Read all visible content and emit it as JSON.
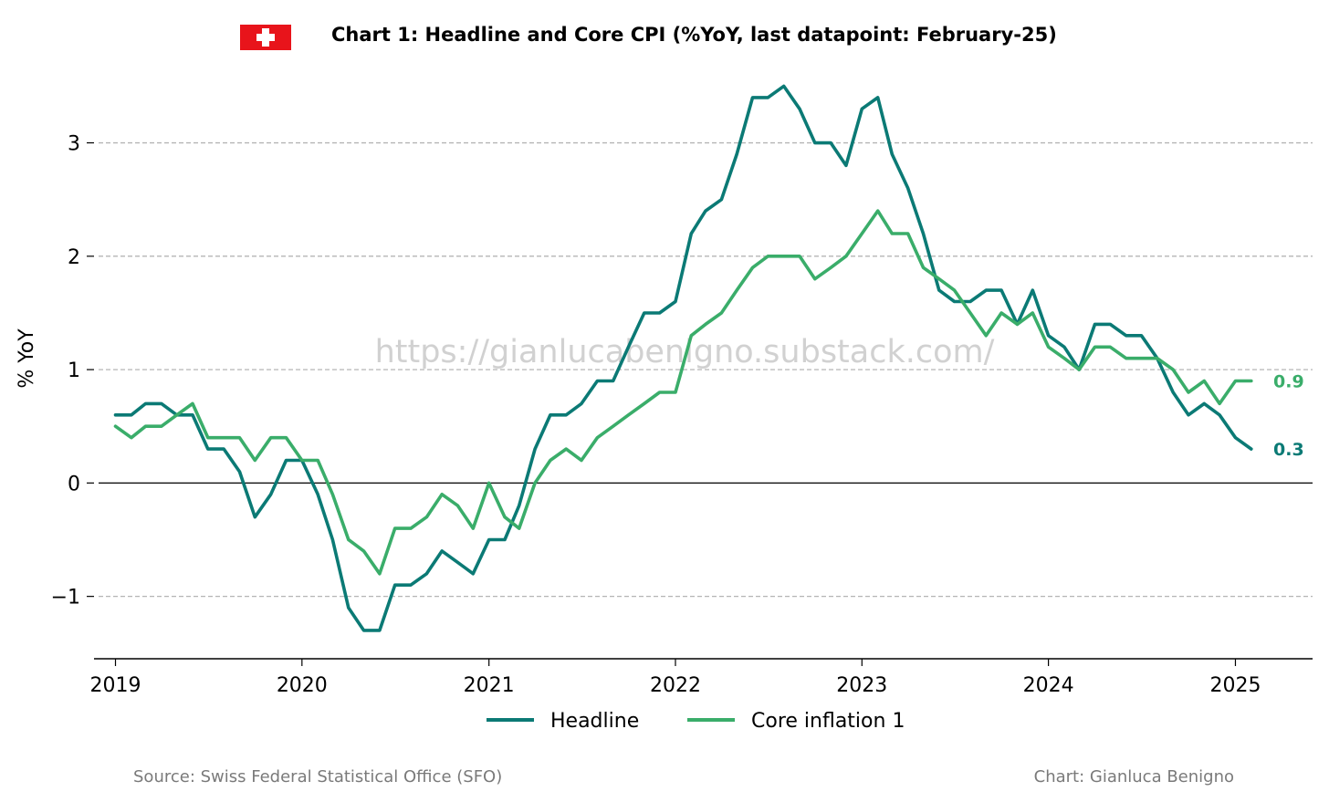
{
  "chart_data": {
    "type": "line",
    "title": "Chart 1: Headline and Core CPI (%YoY, last datapoint: February-25)",
    "ylabel": "% YoY",
    "xlabel": "",
    "ylim": [
      -1.55,
      3.6
    ],
    "x_range": [
      "2018-11-20",
      "2025-06-01"
    ],
    "grid": "horizontal dashed",
    "legend_position": "bottom-center",
    "y_ticks": [
      {
        "value": -1,
        "label": "−1"
      },
      {
        "value": 0,
        "label": "0"
      },
      {
        "value": 1,
        "label": "1"
      },
      {
        "value": 2,
        "label": "2"
      },
      {
        "value": 3,
        "label": "3"
      }
    ],
    "x_ticks": [
      "2019",
      "2020",
      "2021",
      "2022",
      "2023",
      "2024",
      "2025"
    ],
    "start": "2019-01",
    "series": [
      {
        "name": "Headline",
        "color": "#0b7a75",
        "end_label": "0.3",
        "values": [
          0.6,
          0.6,
          0.7,
          0.7,
          0.6,
          0.6,
          0.3,
          0.3,
          0.1,
          -0.3,
          -0.1,
          0.2,
          0.2,
          -0.1,
          -0.5,
          -1.1,
          -1.3,
          -1.3,
          -0.9,
          -0.9,
          -0.8,
          -0.6,
          -0.7,
          -0.8,
          -0.5,
          -0.5,
          -0.2,
          0.3,
          0.6,
          0.6,
          0.7,
          0.9,
          0.9,
          1.2,
          1.5,
          1.5,
          1.6,
          2.2,
          2.4,
          2.5,
          2.9,
          3.4,
          3.4,
          3.5,
          3.3,
          3.0,
          3.0,
          2.8,
          3.3,
          3.4,
          2.9,
          2.6,
          2.2,
          1.7,
          1.6,
          1.6,
          1.7,
          1.7,
          1.4,
          1.7,
          1.3,
          1.2,
          1.0,
          1.4,
          1.4,
          1.3,
          1.3,
          1.1,
          0.8,
          0.6,
          0.7,
          0.6,
          0.4,
          0.3
        ]
      },
      {
        "name": "Core inflation 1",
        "color": "#3aad6a",
        "end_label": "0.9",
        "values": [
          0.5,
          0.4,
          0.5,
          0.5,
          0.6,
          0.7,
          0.4,
          0.4,
          0.4,
          0.2,
          0.4,
          0.4,
          0.2,
          0.2,
          -0.1,
          -0.5,
          -0.6,
          -0.8,
          -0.4,
          -0.4,
          -0.3,
          -0.1,
          -0.2,
          -0.4,
          0.0,
          -0.3,
          -0.4,
          0.0,
          0.2,
          0.3,
          0.2,
          0.4,
          0.5,
          0.6,
          0.7,
          0.8,
          0.8,
          1.3,
          1.4,
          1.5,
          1.7,
          1.9,
          2.0,
          2.0,
          2.0,
          1.8,
          1.9,
          2.0,
          2.2,
          2.4,
          2.2,
          2.2,
          1.9,
          1.8,
          1.7,
          1.5,
          1.3,
          1.5,
          1.4,
          1.5,
          1.2,
          1.1,
          1.0,
          1.2,
          1.2,
          1.1,
          1.1,
          1.1,
          1.0,
          0.8,
          0.9,
          0.7,
          0.9,
          0.9
        ]
      }
    ],
    "watermark": "https://gianlucabenigno.substack.com/"
  },
  "flag": {
    "name": "switzerland-flag-icon",
    "colors": {
      "field": "#e8141b",
      "cross": "#ffffff"
    }
  },
  "footer": {
    "source": "Source: Swiss Federal Statistical Office (SFO)",
    "credit": "Chart: Gianluca Benigno"
  }
}
